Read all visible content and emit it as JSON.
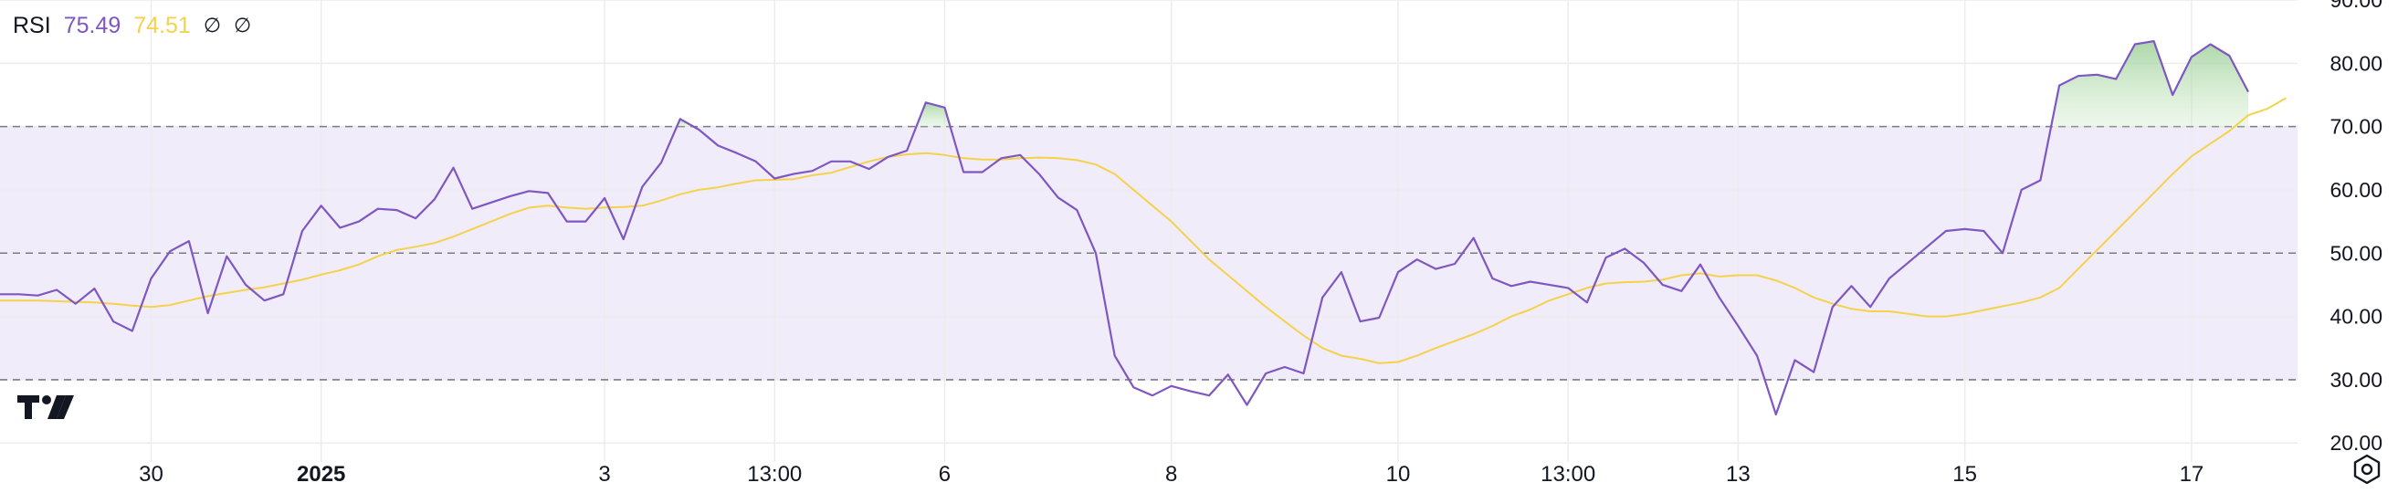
{
  "indicator": {
    "name": "RSI",
    "rsi_value": "75.49",
    "ma_value": "74.51",
    "na_symbols": [
      "∅",
      "∅"
    ]
  },
  "icons": {
    "logo": "tradingview-logo-icon",
    "settings": "settings-hexagon-icon"
  },
  "colors": {
    "rsi": "#7e57c2",
    "ma": "#f5d24b",
    "band_fill": "#f1ecfa",
    "overbought_fill": "#cdeac7",
    "grid": "#ececec",
    "dashed": "#787b86",
    "text": "#131722"
  },
  "chart_data": {
    "type": "line",
    "title": "",
    "xlabel": "",
    "ylabel": "",
    "ylim": [
      17,
      90
    ],
    "y_ticks": [
      "20.00",
      "30.00",
      "40.00",
      "50.00",
      "60.00",
      "70.00",
      "80.00",
      "90.00"
    ],
    "y_tick_values": [
      20,
      30,
      40,
      50,
      60,
      70,
      80,
      90
    ],
    "x_ticks": [
      {
        "label": "30",
        "index": 8,
        "bold": false
      },
      {
        "label": "2025",
        "index": 17,
        "bold": true
      },
      {
        "label": "3",
        "index": 32,
        "bold": false
      },
      {
        "label": "13:00",
        "index": 41,
        "bold": false
      },
      {
        "label": "6",
        "index": 50,
        "bold": false
      },
      {
        "label": "8",
        "index": 62,
        "bold": false
      },
      {
        "label": "10",
        "index": 74,
        "bold": false
      },
      {
        "label": "13:00",
        "index": 83,
        "bold": false
      },
      {
        "label": "13",
        "index": 92,
        "bold": false
      },
      {
        "label": "15",
        "index": 104,
        "bold": false
      },
      {
        "label": "17",
        "index": 116,
        "bold": false
      }
    ],
    "bands": {
      "upper": 70,
      "middle": 50,
      "lower": 30
    },
    "grid": true,
    "series": [
      {
        "key": "rsi",
        "values": [
          43.5,
          43.5,
          43.3,
          44.2,
          42,
          44.4,
          39.2,
          37.7,
          46,
          50.3,
          51.9,
          40.5,
          49.5,
          45,
          42.5,
          43.5,
          53.5,
          57.5,
          54,
          55,
          57,
          56.8,
          55.5,
          58.5,
          63.5,
          57,
          58,
          59,
          59.8,
          59.5,
          55,
          55,
          58.7,
          52.2,
          60.5,
          64.3,
          71.2,
          69.5,
          67,
          65.8,
          64.5,
          61.8,
          62.5,
          63,
          64.5,
          64.5,
          63.3,
          65.2,
          66.2,
          73.8,
          73,
          62.8,
          62.8,
          65,
          65.5,
          62.5,
          58.8,
          56.8,
          50,
          33.8,
          28.8,
          27.5,
          29,
          28.2,
          27.5,
          30.8,
          26,
          31,
          32,
          31,
          43,
          47,
          39.2,
          39.8,
          47,
          49,
          47.5,
          48.3,
          52.4,
          46,
          44.8,
          45.5,
          45,
          44.5,
          42.2,
          49.3,
          50.7,
          48.5,
          45,
          44,
          48.2,
          43,
          38.5,
          33.8,
          24.5,
          33.1,
          31.2,
          41.5,
          44.8,
          41.5,
          46,
          48.5,
          51,
          53.5,
          53.8,
          53.5,
          50,
          60,
          61.5,
          76.5,
          78,
          78.2,
          77.5,
          83,
          83.5,
          75,
          81,
          83,
          81.2,
          75.49
        ]
      },
      {
        "key": "ma",
        "values": [
          42.5,
          42.5,
          42.5,
          42.4,
          42.3,
          42.2,
          42,
          41.7,
          41.5,
          41.8,
          42.5,
          43.2,
          43.7,
          44.2,
          44.6,
          45.2,
          45.8,
          46.6,
          47.3,
          48.2,
          49.5,
          50.5,
          51,
          51.6,
          52.6,
          53.8,
          55,
          56.2,
          57.2,
          57.5,
          57.2,
          57,
          57.2,
          57.3,
          57.5,
          58.3,
          59.3,
          60,
          60.4,
          61,
          61.5,
          61.6,
          61.7,
          62.3,
          62.7,
          63.6,
          64.5,
          65.2,
          65.6,
          65.8,
          65.5,
          65,
          64.8,
          64.8,
          65,
          65.1,
          65,
          64.7,
          64,
          62.5,
          60,
          57.5,
          55,
          52,
          49,
          46.5,
          44,
          41.5,
          39.2,
          37,
          35,
          33.8,
          33.3,
          32.6,
          32.8,
          33.8,
          35,
          36.1,
          37.2,
          38.5,
          40,
          41.1,
          42.5,
          43.5,
          44.5,
          45.2,
          45.4,
          45.5,
          45.8,
          46.5,
          46.8,
          46.3,
          46.5,
          46.5,
          45.7,
          44.5,
          43,
          42,
          41.2,
          40.8,
          40.8,
          40.4,
          40,
          40,
          40.4,
          41,
          41.6,
          42.2,
          43,
          44.5,
          47.5,
          50.5,
          53.5,
          56.5,
          59.5,
          62.5,
          65.3,
          67.3,
          69.3,
          71.8,
          72.8,
          74.51
        ]
      }
    ]
  }
}
